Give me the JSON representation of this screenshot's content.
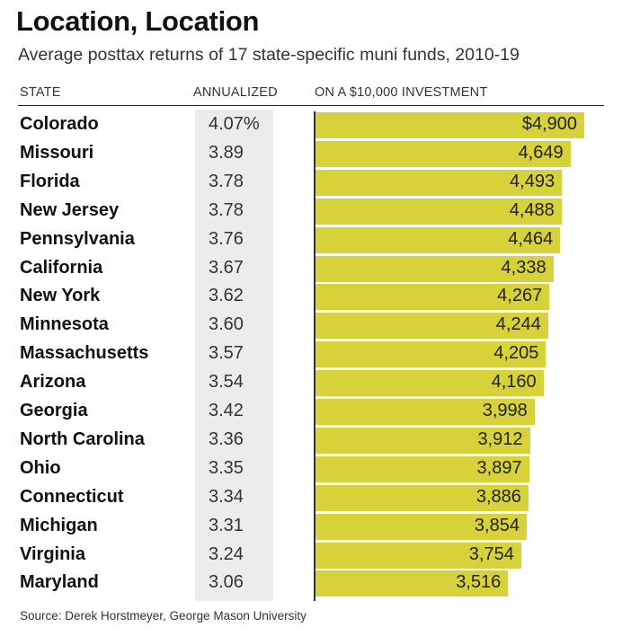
{
  "header": {
    "title": "Location, Location",
    "subtitle": "Average posttax returns of 17 state-specific muni funds, 2010-19"
  },
  "columns": {
    "state": "STATE",
    "annualized": "ANNUALIZED",
    "investment": "ON A $10,000 INVESTMENT"
  },
  "source": "Source: Derek Horstmeyer, George Mason University",
  "colors": {
    "bar": "#d7d23a",
    "annualized_column_bg": "#ececec"
  },
  "chart_data": {
    "type": "bar",
    "orientation": "horizontal",
    "title": "Location, Location",
    "subtitle": "Average posttax returns of 17 state-specific muni funds, 2010-19",
    "categories": [
      "Colorado",
      "Missouri",
      "Florida",
      "New Jersey",
      "Pennsylvania",
      "California",
      "New York",
      "Minnesota",
      "Massachusetts",
      "Arizona",
      "Georgia",
      "North Carolina",
      "Ohio",
      "Connecticut",
      "Michigan",
      "Virginia",
      "Maryland"
    ],
    "annualized": [
      4.07,
      3.89,
      3.78,
      3.78,
      3.76,
      3.67,
      3.62,
      3.6,
      3.57,
      3.54,
      3.42,
      3.36,
      3.35,
      3.34,
      3.31,
      3.24,
      3.06
    ],
    "annualized_labels": [
      "4.07%",
      "3.89",
      "3.78",
      "3.78",
      "3.76",
      "3.67",
      "3.62",
      "3.60",
      "3.57",
      "3.54",
      "3.42",
      "3.36",
      "3.35",
      "3.34",
      "3.31",
      "3.24",
      "3.06"
    ],
    "values": [
      4900,
      4649,
      4493,
      4488,
      4464,
      4338,
      4267,
      4244,
      4205,
      4160,
      3998,
      3912,
      3897,
      3886,
      3854,
      3754,
      3516
    ],
    "value_labels": [
      "$4,900",
      "4,649",
      "4,493",
      "4,488",
      "4,464",
      "4,338",
      "4,267",
      "4,244",
      "4,205",
      "4,160",
      "3,998",
      "3,912",
      "3,897",
      "3,886",
      "3,854",
      "3,754",
      "3,516"
    ],
    "xlim": [
      0,
      4900
    ],
    "grid": false,
    "legend": "none"
  }
}
